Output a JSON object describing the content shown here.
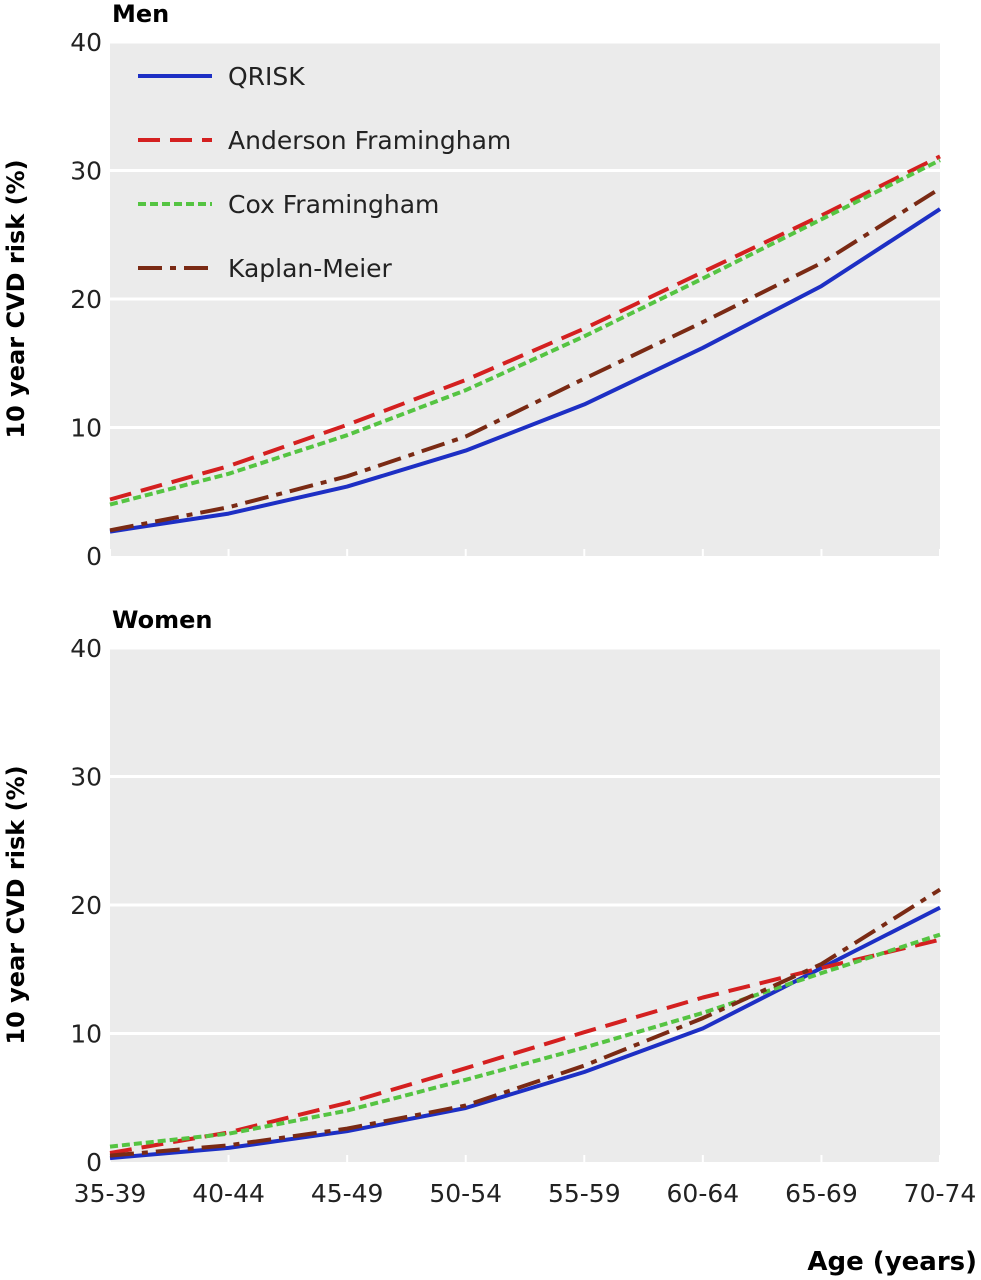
{
  "chart_data": [
    {
      "type": "line",
      "title": "Men",
      "ylabel": "10 year CVD risk (%)",
      "xlabel": "",
      "ylim": [
        0,
        40
      ],
      "yticks": [
        0,
        10,
        20,
        30,
        40
      ],
      "categories": [
        "35-39",
        "40-44",
        "45-49",
        "50-54",
        "55-59",
        "60-64",
        "65-69",
        "70-74"
      ],
      "legend_position": "top-left",
      "grid": true,
      "series": [
        {
          "name": "QRISK",
          "color": "#1d2fc4",
          "style": "solid",
          "values": [
            1.9,
            3.3,
            5.4,
            8.2,
            11.8,
            16.2,
            21.0,
            27.0
          ]
        },
        {
          "name": "Anderson Framingham",
          "color": "#d42020",
          "style": "dashed",
          "values": [
            4.4,
            7.0,
            10.2,
            13.7,
            17.7,
            22.1,
            26.5,
            31.1
          ]
        },
        {
          "name": "Cox Framingham",
          "color": "#55c442",
          "style": "dotted",
          "values": [
            4.0,
            6.4,
            9.4,
            12.9,
            17.1,
            21.6,
            26.2,
            30.8
          ]
        },
        {
          "name": "Kaplan-Meier",
          "color": "#7a2a14",
          "style": "dashdot",
          "values": [
            2.0,
            3.8,
            6.2,
            9.3,
            13.8,
            18.2,
            22.8,
            28.6
          ]
        }
      ]
    },
    {
      "type": "line",
      "title": "Women",
      "ylabel": "10 year CVD risk (%)",
      "xlabel": "Age (years)",
      "ylim": [
        0,
        40
      ],
      "yticks": [
        0,
        10,
        20,
        30,
        40
      ],
      "categories": [
        "35-39",
        "40-44",
        "45-49",
        "50-54",
        "55-59",
        "60-64",
        "65-69",
        "70-74"
      ],
      "grid": true,
      "series": [
        {
          "name": "QRISK",
          "color": "#1d2fc4",
          "style": "solid",
          "values": [
            0.3,
            1.1,
            2.4,
            4.2,
            7.0,
            10.4,
            15.1,
            19.8
          ]
        },
        {
          "name": "Anderson Framingham",
          "color": "#d42020",
          "style": "dashed",
          "values": [
            0.7,
            2.3,
            4.6,
            7.3,
            10.1,
            12.8,
            15.1,
            17.3
          ]
        },
        {
          "name": "Cox Framingham",
          "color": "#55c442",
          "style": "dotted",
          "values": [
            1.2,
            2.2,
            4.0,
            6.4,
            8.9,
            11.6,
            14.7,
            17.7
          ]
        },
        {
          "name": "Kaplan-Meier",
          "color": "#7a2a14",
          "style": "dashdot",
          "values": [
            0.5,
            1.3,
            2.6,
            4.4,
            7.5,
            11.2,
            15.4,
            21.2
          ]
        }
      ]
    }
  ]
}
